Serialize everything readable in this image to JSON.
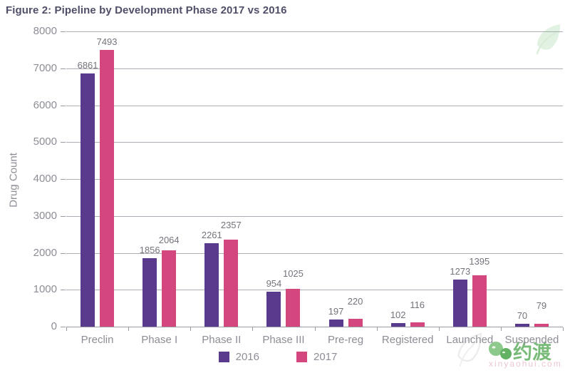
{
  "title": "Figure 2: Pipeline by Development Phase 2017 vs 2016",
  "chart_data": {
    "type": "bar",
    "title": "Figure 2: Pipeline by Development Phase 2017 vs 2016",
    "categories": [
      "Preclin",
      "Phase I",
      "Phase II",
      "Phase III",
      "Pre-reg",
      "Registered",
      "Launched",
      "Suspended"
    ],
    "series": [
      {
        "name": "2016",
        "color": "#5a3a8c",
        "values": [
          6861,
          1856,
          2261,
          954,
          197,
          102,
          1273,
          70
        ]
      },
      {
        "name": "2017",
        "color": "#d4477e",
        "values": [
          7493,
          2064,
          2357,
          1025,
          220,
          116,
          1395,
          79
        ]
      }
    ],
    "xlabel": "",
    "ylabel": "Drug Count",
    "ylim": [
      0,
      8000
    ],
    "yticks": [
      0,
      1000,
      2000,
      3000,
      4000,
      5000,
      6000,
      7000,
      8000
    ],
    "grid": true,
    "legend_position": "bottom",
    "value_labels_shown": true
  },
  "colors": {
    "title": "#4f4f69",
    "axis_label": "#8d8d97",
    "value_label": "#73737c",
    "gridline": "#adadb6",
    "axis_line": "#9a9aa4",
    "watermark_green": "#61ae60",
    "watermark_site_pink": "#e5b3c2"
  },
  "watermark": {
    "logo_text": "约渡",
    "site_text": "xinyaohui.com"
  }
}
